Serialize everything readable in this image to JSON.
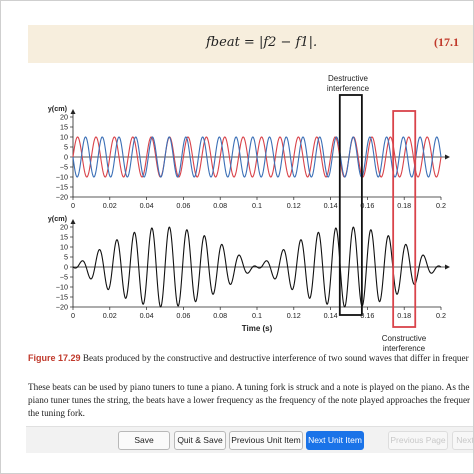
{
  "formula": {
    "text": "fbeat = |f2 − f1|.",
    "equation_number": "(17.1"
  },
  "colors": {
    "red_wave": "#d9434a",
    "blue_wave": "#3b6fb6",
    "black_wave": "#111111",
    "destructive_box": "#111111",
    "constructive_box": "#d9434a",
    "caption_label": "#c0392b",
    "primary_button": "#1a73e8"
  },
  "annotations": {
    "destructive": [
      "Destructive",
      "interference"
    ],
    "constructive": [
      "Constructive",
      "interference"
    ]
  },
  "chart_data": [
    {
      "type": "line",
      "ylabel": "y(cm)",
      "xlabel": "",
      "xlim": [
        0,
        0.2
      ],
      "ylim": [
        -20,
        20
      ],
      "x_ticks": [
        "0",
        "0.02",
        "0.04",
        "0.06",
        "0.08",
        "0.1",
        "0.12",
        "0.14",
        "0.16",
        "0.18",
        "0.2"
      ],
      "y_ticks": [
        "20",
        "15",
        "10",
        "5",
        "0",
        "−5",
        "−10",
        "−15",
        "−20"
      ],
      "series": [
        {
          "color": "red",
          "amplitude": 10,
          "frequency_hz": 100,
          "phase": 0
        },
        {
          "color": "blue",
          "amplitude": 10,
          "frequency_hz": 110,
          "phase": 3.14159
        }
      ]
    },
    {
      "type": "line",
      "ylabel": "y(cm)",
      "xlabel": "Time (s)",
      "xlim": [
        0,
        0.2
      ],
      "ylim": [
        -20,
        20
      ],
      "x_ticks": [
        "0",
        "0.02",
        "0.04",
        "0.06",
        "0.08",
        "0.1",
        "0.12",
        "0.14",
        "0.16",
        "0.18",
        "0.2"
      ],
      "y_ticks": [
        "20",
        "15",
        "10",
        "5",
        "0",
        "−5",
        "−10",
        "−15",
        "−20"
      ],
      "series": [
        {
          "color": "black",
          "sum_of_top_series": true
        }
      ],
      "highlights": [
        {
          "label": "Destructive interference",
          "x_range": [
            0.145,
            0.157
          ]
        },
        {
          "label": "Constructive interference",
          "x_range": [
            0.174,
            0.186
          ]
        }
      ]
    }
  ],
  "caption": {
    "label": "Figure 17.29",
    "text": " Beats produced by the constructive and destructive interference of two sound waves that differ in frequer"
  },
  "body_text": [
    "These beats can be used by piano tuners to tune a piano. A tuning fork is struck and a note is played on the piano. As the",
    "piano tuner tunes the string, the beats have a lower frequency as the frequency of the note played approaches the frequer",
    "the tuning fork."
  ],
  "toolbar": {
    "save": "Save",
    "quit_save": "Quit & Save",
    "previous_unit": "Previous Unit Item",
    "next_unit": "Next Unit Item",
    "previous_page": "Previous Page",
    "next_page": "Next P"
  }
}
